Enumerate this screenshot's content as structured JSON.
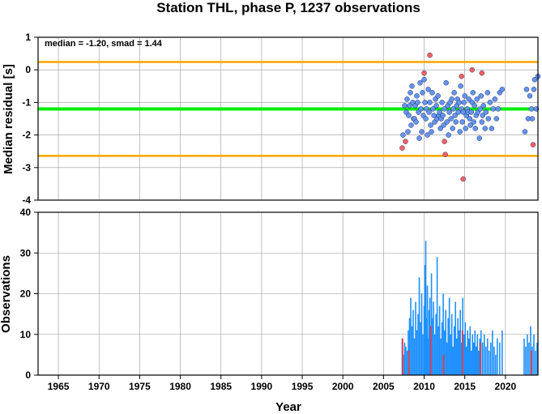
{
  "colors": {
    "threshold": "#ffa500",
    "median_line": "#00ee00",
    "normal_point": "#6495ed",
    "outlier_point": "#ff6060",
    "bar": "#1e90ff",
    "bar_outlier": "#ff3333",
    "grid": "#999999"
  },
  "chart_data": [
    {
      "type": "scatter",
      "title": "Station THL, phase P, 1237 observations",
      "annotation": "median = -1.20, smad = 1.44",
      "xlabel": "",
      "ylabel": "Median residual [s]",
      "xlim": [
        1962.5,
        2024
      ],
      "ylim": [
        -4,
        1
      ],
      "yticks": [
        "1",
        "0",
        "-1",
        "-2",
        "-3",
        "-4"
      ],
      "grid": true,
      "hlines": [
        {
          "name": "median",
          "y": -1.2,
          "color": "#00ee00"
        },
        {
          "name": "upper",
          "y": 0.24,
          "color": "#ffa500"
        },
        {
          "name": "lower",
          "y": -2.64,
          "color": "#ffa500"
        }
      ],
      "series": [
        {
          "kind": "normal",
          "points": [
            [
              2007.4,
              -2.0
            ],
            [
              2007.6,
              -1.1
            ],
            [
              2007.8,
              -1.3
            ],
            [
              2007.9,
              -0.9
            ],
            [
              2008.0,
              -1.9
            ],
            [
              2008.1,
              -1.4
            ],
            [
              2008.2,
              -1.1
            ],
            [
              2008.3,
              -0.7
            ],
            [
              2008.4,
              -1.7
            ],
            [
              2008.5,
              -0.5
            ],
            [
              2008.6,
              -1.0
            ],
            [
              2008.7,
              -1.5
            ],
            [
              2008.8,
              -1.5
            ],
            [
              2008.9,
              -1.1
            ],
            [
              2009.0,
              -1.6
            ],
            [
              2009.1,
              -0.8
            ],
            [
              2009.2,
              -1.0
            ],
            [
              2009.3,
              -1.3
            ],
            [
              2009.4,
              -2.1
            ],
            [
              2009.5,
              -0.4
            ],
            [
              2009.6,
              -1.2
            ],
            [
              2009.7,
              -1.9
            ],
            [
              2009.8,
              -0.7
            ],
            [
              2009.9,
              -1.4
            ],
            [
              2010.0,
              -0.3
            ],
            [
              2010.1,
              -1.0
            ],
            [
              2010.2,
              -1.5
            ],
            [
              2010.3,
              -1.2
            ],
            [
              2010.4,
              -2.0
            ],
            [
              2010.5,
              -0.6
            ],
            [
              2010.6,
              -1.3
            ],
            [
              2010.7,
              -1.0
            ],
            [
              2010.8,
              -1.7
            ],
            [
              2010.9,
              -1.9
            ],
            [
              2011.0,
              -0.7
            ],
            [
              2011.1,
              -1.2
            ],
            [
              2011.2,
              -1.4
            ],
            [
              2011.3,
              -1.6
            ],
            [
              2011.4,
              -0.9
            ],
            [
              2011.5,
              -1.1
            ],
            [
              2011.6,
              -1.5
            ],
            [
              2011.7,
              -0.8
            ],
            [
              2011.8,
              -1.4
            ],
            [
              2011.9,
              -1.3
            ],
            [
              2012.0,
              -1.8
            ],
            [
              2012.1,
              -1.5
            ],
            [
              2012.2,
              -1.0
            ],
            [
              2012.3,
              -1.4
            ],
            [
              2012.4,
              -1.7
            ],
            [
              2012.5,
              -1.2
            ],
            [
              2012.7,
              -0.4
            ],
            [
              2012.8,
              -1.6
            ],
            [
              2012.9,
              -1.1
            ],
            [
              2013.0,
              -2.0
            ],
            [
              2013.1,
              -1.3
            ],
            [
              2013.2,
              -1.0
            ],
            [
              2013.3,
              -1.5
            ],
            [
              2013.4,
              -0.9
            ],
            [
              2013.5,
              -1.8
            ],
            [
              2013.6,
              -1.2
            ],
            [
              2013.7,
              -0.7
            ],
            [
              2013.8,
              -1.4
            ],
            [
              2013.9,
              -1.6
            ],
            [
              2014.0,
              -1.1
            ],
            [
              2014.1,
              -0.9
            ],
            [
              2014.2,
              -1.3
            ],
            [
              2014.3,
              -1.0
            ],
            [
              2014.4,
              -1.9
            ],
            [
              2014.5,
              -0.5
            ],
            [
              2014.6,
              -1.2
            ],
            [
              2014.7,
              -1.6
            ],
            [
              2014.8,
              -1.3
            ],
            [
              2014.9,
              -1.0
            ],
            [
              2015.0,
              -0.8
            ],
            [
              2015.1,
              -1.8
            ],
            [
              2015.2,
              -1.4
            ],
            [
              2015.3,
              -1.2
            ],
            [
              2015.4,
              -1.3
            ],
            [
              2015.5,
              -0.9
            ],
            [
              2015.6,
              -1.5
            ],
            [
              2015.7,
              -1.7
            ],
            [
              2015.8,
              -1.3
            ],
            [
              2015.9,
              -1.0
            ],
            [
              2016.0,
              -0.7
            ],
            [
              2016.1,
              -1.6
            ],
            [
              2016.2,
              -1.1
            ],
            [
              2016.3,
              -1.8
            ],
            [
              2016.4,
              -1.4
            ],
            [
              2016.5,
              -0.9
            ],
            [
              2016.6,
              -1.3
            ],
            [
              2016.8,
              -2.1
            ],
            [
              2016.9,
              -1.2
            ],
            [
              2017.0,
              -0.8
            ],
            [
              2017.1,
              -1.6
            ],
            [
              2017.2,
              -1.4
            ],
            [
              2017.3,
              -1.1
            ],
            [
              2017.5,
              -1.8
            ],
            [
              2017.6,
              -1.3
            ],
            [
              2017.8,
              -0.7
            ],
            [
              2017.9,
              -1.5
            ],
            [
              2018.1,
              -1.0
            ],
            [
              2018.3,
              -1.8
            ],
            [
              2018.5,
              -1.2
            ],
            [
              2018.7,
              -0.9
            ],
            [
              2018.9,
              -1.5
            ],
            [
              2019.1,
              -1.2
            ],
            [
              2019.3,
              -0.7
            ],
            [
              2019.6,
              -0.6
            ],
            [
              2022.4,
              -1.9
            ],
            [
              2022.6,
              -0.6
            ],
            [
              2022.8,
              -1.5
            ],
            [
              2023.0,
              -0.8
            ],
            [
              2023.2,
              -1.2
            ],
            [
              2023.3,
              -1.5
            ],
            [
              2023.5,
              -0.6
            ],
            [
              2023.6,
              -0.3
            ],
            [
              2023.8,
              -1.2
            ],
            [
              2024.0,
              -0.2
            ]
          ]
        },
        {
          "kind": "outlier",
          "points": [
            [
              2007.3,
              -2.4
            ],
            [
              2007.7,
              -2.2
            ],
            [
              2010.0,
              -0.1
            ],
            [
              2010.7,
              0.45
            ],
            [
              2012.5,
              -2.2
            ],
            [
              2012.6,
              -2.6
            ],
            [
              2014.6,
              -0.2
            ],
            [
              2014.8,
              -3.35
            ],
            [
              2015.9,
              0.0
            ],
            [
              2017.1,
              -0.1
            ],
            [
              2023.4,
              -2.3
            ]
          ]
        }
      ]
    },
    {
      "type": "bar",
      "title": "",
      "xlabel": "Year",
      "ylabel": "Observations",
      "xlim": [
        1962.5,
        2024
      ],
      "ylim": [
        0,
        40
      ],
      "yticks": [
        "40",
        "30",
        "20",
        "10",
        "0"
      ],
      "xticks": [
        "1965",
        "1970",
        "1975",
        "1980",
        "1985",
        "1990",
        "1995",
        "2000",
        "2005",
        "2010",
        "2015",
        "2020"
      ],
      "grid": true,
      "bars": [
        [
          2007.3,
          9
        ],
        [
          2007.45,
          5
        ],
        [
          2007.6,
          8
        ],
        [
          2007.75,
          7
        ],
        [
          2007.9,
          6
        ],
        [
          2008.05,
          11
        ],
        [
          2008.2,
          14
        ],
        [
          2008.35,
          19
        ],
        [
          2008.5,
          12
        ],
        [
          2008.65,
          16
        ],
        [
          2008.8,
          9
        ],
        [
          2008.95,
          18
        ],
        [
          2009.1,
          11
        ],
        [
          2009.25,
          15
        ],
        [
          2009.4,
          24
        ],
        [
          2009.55,
          13
        ],
        [
          2009.7,
          20
        ],
        [
          2009.85,
          10
        ],
        [
          2010.0,
          17
        ],
        [
          2010.1,
          27
        ],
        [
          2010.2,
          33
        ],
        [
          2010.3,
          14
        ],
        [
          2010.4,
          22
        ],
        [
          2010.5,
          9
        ],
        [
          2010.6,
          16
        ],
        [
          2010.7,
          19
        ],
        [
          2010.8,
          12
        ],
        [
          2010.9,
          25
        ],
        [
          2011.0,
          14
        ],
        [
          2011.15,
          18
        ],
        [
          2011.3,
          10
        ],
        [
          2011.45,
          15
        ],
        [
          2011.6,
          29
        ],
        [
          2011.75,
          12
        ],
        [
          2011.9,
          17
        ],
        [
          2012.05,
          9
        ],
        [
          2012.2,
          13
        ],
        [
          2012.35,
          20
        ],
        [
          2012.5,
          11
        ],
        [
          2012.65,
          16
        ],
        [
          2012.8,
          8
        ],
        [
          2012.95,
          14
        ],
        [
          2013.1,
          19
        ],
        [
          2013.25,
          10
        ],
        [
          2013.4,
          15
        ],
        [
          2013.55,
          7
        ],
        [
          2013.7,
          12
        ],
        [
          2013.85,
          18
        ],
        [
          2014.0,
          9
        ],
        [
          2014.15,
          14
        ],
        [
          2014.3,
          11
        ],
        [
          2014.45,
          16
        ],
        [
          2014.6,
          8
        ],
        [
          2014.75,
          19
        ],
        [
          2014.9,
          10
        ],
        [
          2015.05,
          13
        ],
        [
          2015.2,
          7
        ],
        [
          2015.35,
          11
        ],
        [
          2015.5,
          9
        ],
        [
          2015.65,
          12
        ],
        [
          2015.8,
          6
        ],
        [
          2015.95,
          10
        ],
        [
          2016.1,
          8
        ],
        [
          2016.25,
          11
        ],
        [
          2016.4,
          7
        ],
        [
          2016.55,
          10
        ],
        [
          2016.7,
          6
        ],
        [
          2016.85,
          9
        ],
        [
          2017.0,
          11
        ],
        [
          2017.2,
          8
        ],
        [
          2017.4,
          10
        ],
        [
          2017.6,
          7
        ],
        [
          2017.8,
          9
        ],
        [
          2018.0,
          6
        ],
        [
          2018.2,
          8
        ],
        [
          2018.4,
          11
        ],
        [
          2018.6,
          7
        ],
        [
          2018.8,
          5
        ],
        [
          2019.0,
          9
        ],
        [
          2019.3,
          8
        ],
        [
          2019.6,
          11
        ],
        [
          2022.3,
          9
        ],
        [
          2022.5,
          7
        ],
        [
          2022.7,
          10
        ],
        [
          2022.9,
          8
        ],
        [
          2023.1,
          12
        ],
        [
          2023.3,
          7
        ],
        [
          2023.5,
          10
        ],
        [
          2023.7,
          6
        ],
        [
          2023.9,
          8
        ]
      ],
      "outlier_bars": [
        [
          2007.35,
          9
        ],
        [
          2008.1,
          6
        ],
        [
          2010.8,
          12
        ],
        [
          2012.4,
          5
        ],
        [
          2014.7,
          11
        ],
        [
          2016.9,
          8
        ],
        [
          2023.2,
          6
        ]
      ]
    }
  ]
}
